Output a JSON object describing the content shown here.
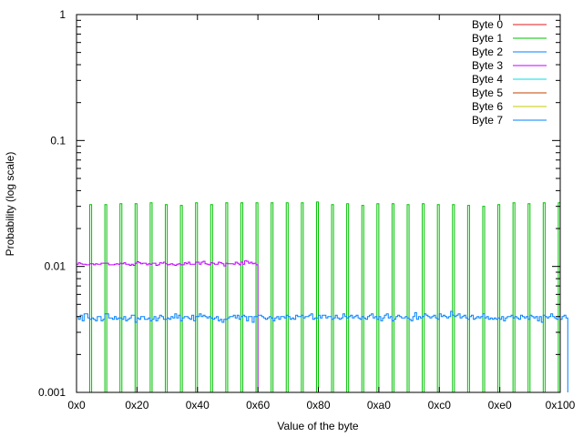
{
  "chart_data": {
    "type": "line",
    "style": "steps",
    "xlabel": "Value of the byte",
    "ylabel": "Probability (log scale)",
    "xlim": [
      0,
      256
    ],
    "ylim": [
      0.001,
      1
    ],
    "yscale": "log",
    "grid": false,
    "legend_position": "top-right",
    "x_ticks": [
      {
        "value": 0,
        "label": "0x0"
      },
      {
        "value": 32,
        "label": "0x20"
      },
      {
        "value": 64,
        "label": "0x40"
      },
      {
        "value": 96,
        "label": "0x60"
      },
      {
        "value": 128,
        "label": "0x80"
      },
      {
        "value": 160,
        "label": "0xa0"
      },
      {
        "value": 192,
        "label": "0xc0"
      },
      {
        "value": 224,
        "label": "0xe0"
      },
      {
        "value": 256,
        "label": "0x100"
      }
    ],
    "y_ticks": [
      {
        "value": 1,
        "label": "1"
      },
      {
        "value": 0.1,
        "label": "0.1"
      },
      {
        "value": 0.01,
        "label": "0.01"
      },
      {
        "value": 0.001,
        "label": "0.001"
      }
    ],
    "series": [
      {
        "name": "Byte 0",
        "color": "#e41a1c"
      },
      {
        "name": "Byte 1",
        "color": "#00c000",
        "spike_start": 7,
        "spike_step": 8,
        "spike_values": [
          0.031,
          0.031,
          0.0315,
          0.0315,
          0.032,
          0.031,
          0.0305,
          0.032,
          0.031,
          0.032,
          0.032,
          0.032,
          0.032,
          0.032,
          0.032,
          0.0325,
          0.031,
          0.0315,
          0.0305,
          0.0315,
          0.0315,
          0.031,
          0.0315,
          0.031,
          0.031,
          0.0305,
          0.03,
          0.031,
          0.032,
          0.0315,
          0.032,
          0.032
        ]
      },
      {
        "name": "Byte 2",
        "color": "#0080ff"
      },
      {
        "name": "Byte 3",
        "color": "#c000ff",
        "x_start": 0,
        "values": [
          0.0104,
          0.0107,
          0.0105,
          0.0104,
          0.0104,
          0.0103,
          0.0103,
          0.0105,
          0.0105,
          0.0103,
          0.0105,
          0.0104,
          0.0104,
          0.0106,
          0.0106,
          0.0106,
          0.0106,
          0.0103,
          0.0103,
          0.0103,
          0.0104,
          0.0105,
          0.0104,
          0.0106,
          0.0105,
          0.0107,
          0.0104,
          0.0104,
          0.0102,
          0.0104,
          0.0102,
          0.0106,
          0.0109,
          0.0107,
          0.0105,
          0.0106,
          0.0106,
          0.0103,
          0.0105,
          0.0104,
          0.0106,
          0.0106,
          0.0102,
          0.0103,
          0.0107,
          0.0106,
          0.0108,
          0.0105,
          0.0103,
          0.0104,
          0.0105,
          0.0103,
          0.0102,
          0.0104,
          0.0105,
          0.0103,
          0.0103,
          0.0107,
          0.0105,
          0.0108,
          0.0104,
          0.0104,
          0.0104,
          0.0108,
          0.0108,
          0.0104,
          0.0108,
          0.011,
          0.0105,
          0.0104,
          0.0103,
          0.0107,
          0.0106,
          0.0104,
          0.0104,
          0.0108,
          0.0107,
          0.0105,
          0.0101,
          0.0106,
          0.0105,
          0.0105,
          0.0105,
          0.0104,
          0.0108,
          0.0106,
          0.0103,
          0.0108,
          0.0104,
          0.0111,
          0.011,
          0.0106,
          0.0108,
          0.0105,
          0.0106,
          0.0103
        ]
      },
      {
        "name": "Byte 4",
        "color": "#00e0e0"
      },
      {
        "name": "Byte 5",
        "color": "#c04000"
      },
      {
        "name": "Byte 6",
        "color": "#c8c800"
      },
      {
        "name": "Byte 7",
        "color": "#0080ff",
        "x_start": 0,
        "values": [
          0.004,
          0.0038,
          0.0041,
          0.0037,
          0.0042,
          0.0042,
          0.0039,
          0.0038,
          0.0039,
          0.0038,
          0.0037,
          0.004,
          0.004,
          0.0037,
          0.0038,
          0.0042,
          0.0042,
          0.0039,
          0.0039,
          0.0038,
          0.004,
          0.0038,
          0.0039,
          0.0039,
          0.0038,
          0.004,
          0.0037,
          0.0038,
          0.0039,
          0.0041,
          0.0041,
          0.0036,
          0.0039,
          0.0038,
          0.004,
          0.004,
          0.0038,
          0.0038,
          0.0039,
          0.0037,
          0.0038,
          0.004,
          0.0037,
          0.0039,
          0.0041,
          0.004,
          0.0038,
          0.0038,
          0.0039,
          0.0038,
          0.004,
          0.0039,
          0.0042,
          0.0039,
          0.0041,
          0.0037,
          0.0039,
          0.004,
          0.004,
          0.0039,
          0.0038,
          0.0041,
          0.0037,
          0.004,
          0.004,
          0.0042,
          0.004,
          0.0041,
          0.004,
          0.0039,
          0.004,
          0.0039,
          0.0038,
          0.0039,
          0.004,
          0.0037,
          0.0038,
          0.0036,
          0.0038,
          0.0038,
          0.0039,
          0.004,
          0.004,
          0.0041,
          0.0039,
          0.0041,
          0.0038,
          0.004,
          0.0041,
          0.004,
          0.0037,
          0.004,
          0.004,
          0.0036,
          0.004,
          0.004,
          0.0041,
          0.0041,
          0.004,
          0.0039,
          0.0038,
          0.0039,
          0.004,
          0.0039,
          0.0037,
          0.0039,
          0.004,
          0.0038,
          0.004,
          0.004,
          0.0039,
          0.0041,
          0.004,
          0.0038,
          0.0039,
          0.0038,
          0.0041,
          0.004,
          0.004,
          0.0041,
          0.0039,
          0.004,
          0.004,
          0.0041,
          0.0042,
          0.0038,
          0.0039,
          0.0039,
          0.0041,
          0.0039,
          0.0041,
          0.0041,
          0.0039,
          0.004,
          0.004,
          0.0038,
          0.0039,
          0.0041,
          0.0039,
          0.0038,
          0.0039,
          0.0042,
          0.004,
          0.0039,
          0.004,
          0.0041,
          0.0039,
          0.004,
          0.0041,
          0.0039,
          0.0038,
          0.004,
          0.0039,
          0.0038,
          0.004,
          0.0041,
          0.0042,
          0.0039,
          0.004,
          0.0038,
          0.004,
          0.0037,
          0.0039,
          0.0041,
          0.0042,
          0.0039,
          0.004,
          0.0037,
          0.0038,
          0.004,
          0.0041,
          0.004,
          0.0039,
          0.0039,
          0.004,
          0.0039,
          0.0038,
          0.0037,
          0.004,
          0.0043,
          0.0038,
          0.004,
          0.0039,
          0.004,
          0.0042,
          0.0041,
          0.004,
          0.0039,
          0.004,
          0.0041,
          0.0039,
          0.0038,
          0.0042,
          0.004,
          0.0041,
          0.004,
          0.0039,
          0.004,
          0.0044,
          0.0041,
          0.004,
          0.0041,
          0.0042,
          0.0039,
          0.004,
          0.0041,
          0.0039,
          0.0038,
          0.004,
          0.0041,
          0.0038,
          0.0039,
          0.004,
          0.0039,
          0.004,
          0.0042,
          0.0039,
          0.004,
          0.0038,
          0.0039,
          0.0038,
          0.0039,
          0.0038,
          0.0039,
          0.0038,
          0.004,
          0.0037,
          0.0039,
          0.004,
          0.004,
          0.0041,
          0.0039,
          0.004,
          0.0039,
          0.0038,
          0.0041,
          0.004,
          0.0039,
          0.004,
          0.0038,
          0.0041,
          0.004,
          0.0039,
          0.004,
          0.0037,
          0.004,
          0.0036,
          0.0041,
          0.004,
          0.0039,
          0.004,
          0.0042,
          0.004,
          0.0039,
          0.0038,
          0.004,
          0.0038,
          0.004,
          0.0041,
          0.0039
        ]
      }
    ]
  }
}
